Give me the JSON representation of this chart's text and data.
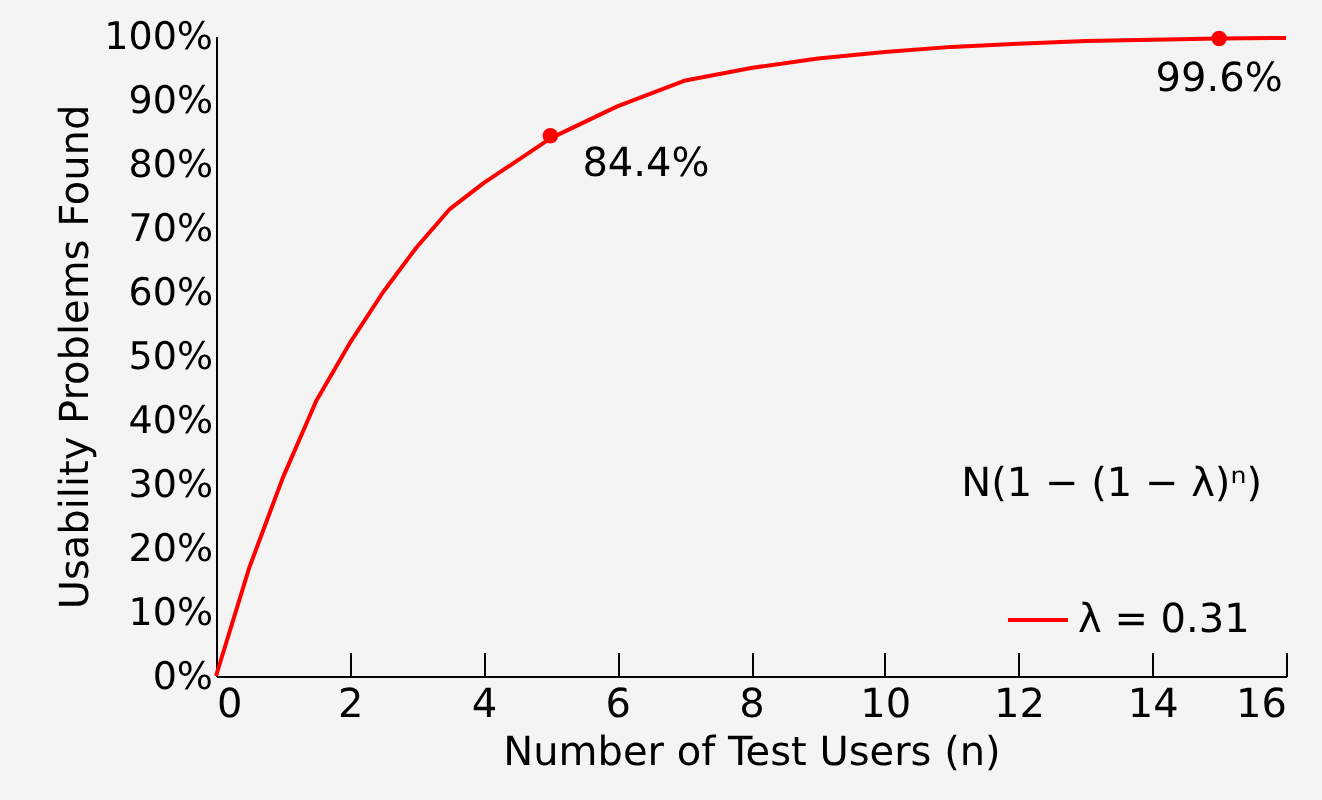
{
  "chart_data": {
    "type": "line",
    "xlabel": "Number of Test Users (n)",
    "ylabel": "Usability Problems Found",
    "annotations": [
      "N(1 − (1 − λ)ⁿ)"
    ],
    "xlim": [
      0,
      16
    ],
    "xticks": [
      0,
      2,
      4,
      6,
      8,
      10,
      12,
      14,
      16
    ],
    "ylim": [
      0,
      100
    ],
    "yticks": [
      {
        "value": 0,
        "label": "0%"
      },
      {
        "value": 10,
        "label": "10%"
      },
      {
        "value": 20,
        "label": "20%"
      },
      {
        "value": 30,
        "label": "30%"
      },
      {
        "value": 40,
        "label": "40%"
      },
      {
        "value": 50,
        "label": "50%"
      },
      {
        "value": 60,
        "label": "60%"
      },
      {
        "value": 70,
        "label": "70%"
      },
      {
        "value": 80,
        "label": "80%"
      },
      {
        "value": 90,
        "label": "90%"
      },
      {
        "value": 100,
        "label": "100%"
      }
    ],
    "grid": false,
    "legend": "bottom right",
    "series": [
      {
        "name": "λ = 0.31",
        "color": "#ff0000",
        "type": "line",
        "marker": "none",
        "x": [
          0,
          0.5,
          1,
          1.5,
          2,
          2.5,
          3,
          3.5,
          4,
          5,
          6,
          7,
          8,
          9,
          10,
          11,
          12,
          13,
          14,
          15,
          16
        ],
        "values": [
          0,
          17,
          31,
          43,
          52,
          60,
          67,
          73,
          77,
          84,
          89,
          93,
          95,
          96.5,
          97.5,
          98.3,
          98.8,
          99.2,
          99.4,
          99.6,
          99.7
        ]
      },
      {
        "color": "#ff0000",
        "type": "scatter",
        "marker": "circle",
        "x": [
          5,
          15
        ],
        "values": [
          84.4,
          99.6
        ],
        "value_labels": [
          "84.4%",
          "99.6%"
        ]
      }
    ]
  }
}
